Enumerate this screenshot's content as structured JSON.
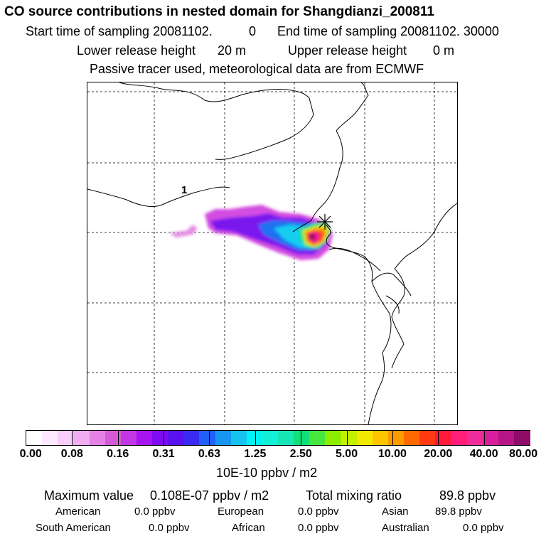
{
  "header": {
    "title": "CO  source contributions in nested domain for Shangdianzi_200811",
    "start_label": "Start time of sampling 20081102.",
    "start_value": "0",
    "end_label": "End time of sampling 20081102. 30000",
    "lower_label": "Lower release height",
    "lower_value": "20 m",
    "upper_label": "Upper release height",
    "upper_value": "0 m",
    "note": "Passive tracer used, meteorological data are from ECMWF"
  },
  "map": {
    "border_label": "1"
  },
  "colorbar": {
    "colors": [
      "#ffffff",
      "#fde8fd",
      "#f9ccf9",
      "#f2acf2",
      "#e681e6",
      "#d65ad6",
      "#c236e3",
      "#a615f0",
      "#7f0bf2",
      "#5b10f0",
      "#3b2bf0",
      "#2160f5",
      "#1696f2",
      "#15c2f0",
      "#00f2f5",
      "#14f0d8",
      "#16e6b4",
      "#0fe078",
      "#46e63c",
      "#8ced00",
      "#c4f000",
      "#f3e800",
      "#ffc400",
      "#ff9a00",
      "#ff6a00",
      "#ff3a10",
      "#ff1a3a",
      "#ff1e7a",
      "#f02c9a",
      "#d81e9c",
      "#b71487",
      "#8f0c69"
    ],
    "tick_labels": [
      "0.00",
      "0.08",
      "0.16",
      "0.31",
      "0.63",
      "1.25",
      "2.50",
      "5.00",
      "10.00",
      "20.00",
      "40.00",
      "80.00"
    ],
    "unit_label": "10E-10 ppbv / m2"
  },
  "stats": {
    "max_label": "Maximum value",
    "max_value": "0.108E-07 ppbv / m2",
    "total_label": "Total mixing ratio",
    "total_value": "89.8 ppbv",
    "american_label": "American",
    "american_value": "0.0 ppbv",
    "european_label": "European",
    "european_value": "0.0 ppbv",
    "asian_label": "Asian",
    "asian_value": "89.8 ppbv",
    "south_american_label": "South American",
    "south_american_value": "0.0 ppbv",
    "african_label": "African",
    "african_value": "0.0 ppbv",
    "australian_label": "Australian",
    "australian_value": "0.0 ppbv"
  }
}
